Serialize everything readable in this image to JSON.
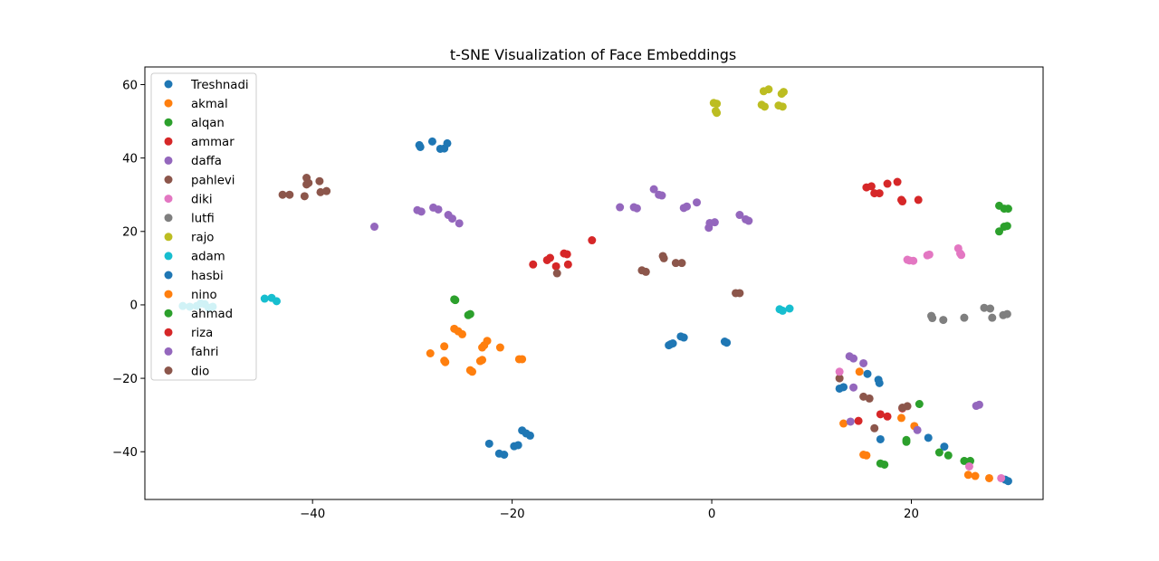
{
  "chart_data": {
    "type": "scatter",
    "title": "t-SNE Visualization of Face Embeddings",
    "xlabel": "",
    "ylabel": "",
    "xlim": [
      -56.8,
      33.2
    ],
    "ylim": [
      -53,
      64.8
    ],
    "xticks": [
      -40,
      -20,
      0,
      20
    ],
    "yticks": [
      -40,
      -20,
      0,
      20,
      40,
      60
    ],
    "grid": false,
    "legend_position": "upper-left",
    "series": [
      {
        "name": "Treshnadi",
        "color": "#1f77b4",
        "points": [
          [
            -29.3,
            43.5
          ],
          [
            -29.2,
            43
          ],
          [
            -28,
            44.5
          ],
          [
            -27.2,
            42.5
          ],
          [
            -26.8,
            42.6
          ],
          [
            -26.5,
            44
          ],
          [
            -22.3,
            -37.8
          ],
          [
            -21.3,
            -40.5
          ],
          [
            -20.8,
            -40.8
          ],
          [
            -19.8,
            -38.5
          ],
          [
            -19.4,
            -38.2
          ],
          [
            -19,
            -34.2
          ],
          [
            -18.6,
            -35
          ],
          [
            -18.2,
            -35.6
          ]
        ]
      },
      {
        "name": "akmal",
        "color": "#ff7f0e",
        "points": [
          [
            -28.2,
            -13.2
          ],
          [
            -26.8,
            -11.3
          ],
          [
            -26.8,
            -15.2
          ],
          [
            -26.7,
            -15.6
          ],
          [
            -25.8,
            -6.5
          ],
          [
            -25.4,
            -7.2
          ],
          [
            -25,
            -8
          ],
          [
            -24.2,
            -17.8
          ],
          [
            -24,
            -18.2
          ],
          [
            -23.2,
            -15.3
          ],
          [
            -23,
            -15
          ],
          [
            -23,
            -11.6
          ],
          [
            -22.8,
            -11
          ],
          [
            -22.5,
            -9.8
          ],
          [
            -21.2,
            -11.6
          ],
          [
            -19.3,
            -14.8
          ],
          [
            -19,
            -14.8
          ]
        ]
      },
      {
        "name": "alqan",
        "color": "#2ca02c",
        "points": [
          [
            -25.8,
            1.5
          ],
          [
            -25.7,
            1.3
          ],
          [
            -24.4,
            -2.8
          ],
          [
            -24.2,
            -2.5
          ],
          [
            28.8,
            27
          ],
          [
            29.3,
            26.2
          ],
          [
            29.7,
            26.2
          ],
          [
            28.8,
            20
          ],
          [
            29.3,
            21.3
          ],
          [
            29.6,
            21.5
          ]
        ]
      },
      {
        "name": "ammar",
        "color": "#d62728",
        "points": [
          [
            -17.9,
            11
          ],
          [
            -16.5,
            12.2
          ],
          [
            -16.2,
            12.8
          ],
          [
            -15.6,
            10.5
          ],
          [
            -14.8,
            14
          ],
          [
            -14.5,
            13.8
          ],
          [
            -14.4,
            11
          ],
          [
            -12,
            17.6
          ],
          [
            15.5,
            32
          ],
          [
            16,
            32.3
          ],
          [
            16.3,
            30.4
          ],
          [
            16.8,
            30.4
          ],
          [
            17.6,
            33
          ],
          [
            18.6,
            33.5
          ],
          [
            19,
            28.6
          ],
          [
            19.1,
            28.2
          ],
          [
            20.7,
            28.6
          ]
        ]
      },
      {
        "name": "daffa",
        "color": "#9467bd",
        "points": [
          [
            -33.8,
            21.3
          ],
          [
            -29.5,
            25.8
          ],
          [
            -29.1,
            25.4
          ],
          [
            -27.9,
            26.5
          ],
          [
            -27.4,
            26
          ],
          [
            -26.4,
            24.5
          ],
          [
            -26,
            23.5
          ],
          [
            -25.3,
            22.2
          ],
          [
            -9.2,
            26.6
          ],
          [
            -7.8,
            26.6
          ],
          [
            -7.5,
            26.3
          ],
          [
            -5.8,
            31.5
          ],
          [
            -5.3,
            30
          ],
          [
            -5,
            29.8
          ],
          [
            -2.8,
            26.4
          ],
          [
            -2.5,
            26.8
          ],
          [
            -1.5,
            27.9
          ],
          [
            -0.3,
            21
          ],
          [
            -0.2,
            22.3
          ],
          [
            0.3,
            22.5
          ],
          [
            2.8,
            24.5
          ],
          [
            3.4,
            23.3
          ],
          [
            3.7,
            22.9
          ]
        ]
      },
      {
        "name": "pahlevi",
        "color": "#8c564b",
        "points": [
          [
            -43,
            30
          ],
          [
            -42.3,
            30
          ],
          [
            -40.8,
            29.6
          ],
          [
            -40.6,
            32.8
          ],
          [
            -40.6,
            34.6
          ],
          [
            -40.4,
            33.2
          ],
          [
            -39.3,
            33.7
          ],
          [
            -39.2,
            30.7
          ],
          [
            -38.6,
            31
          ],
          [
            -15.5,
            8.6
          ],
          [
            -7,
            9.4
          ],
          [
            -6.6,
            9
          ],
          [
            -4.9,
            13.3
          ],
          [
            -4.8,
            12.7
          ],
          [
            -3.6,
            11.4
          ],
          [
            -3,
            11.4
          ],
          [
            2.4,
            3.2
          ],
          [
            2.8,
            3.2
          ]
        ]
      },
      {
        "name": "diki",
        "color": "#e377c2",
        "points": [
          [
            19.6,
            12.3
          ],
          [
            19.8,
            12.1
          ],
          [
            20.2,
            12
          ],
          [
            21.6,
            13.5
          ],
          [
            21.8,
            13.7
          ],
          [
            24.7,
            15.4
          ],
          [
            24.9,
            14
          ],
          [
            25,
            13.6
          ]
        ]
      },
      {
        "name": "lutfi",
        "color": "#7f7f7f",
        "points": [
          [
            22,
            -3
          ],
          [
            22.1,
            -3.6
          ],
          [
            23.2,
            -4.1
          ],
          [
            25.3,
            -3.5
          ],
          [
            27.3,
            -0.8
          ],
          [
            27.9,
            -1
          ],
          [
            28.1,
            -3.5
          ],
          [
            29.2,
            -2.8
          ],
          [
            29.6,
            -2.5
          ]
        ]
      },
      {
        "name": "rajo",
        "color": "#bcbd22",
        "points": [
          [
            0.2,
            55
          ],
          [
            0.5,
            54.8
          ],
          [
            0.4,
            52.8
          ],
          [
            0.5,
            52.3
          ],
          [
            5,
            54.5
          ],
          [
            5.3,
            54
          ],
          [
            5.2,
            58.2
          ],
          [
            5.7,
            58.7
          ],
          [
            6.7,
            54.3
          ],
          [
            7.1,
            54
          ],
          [
            7,
            57.5
          ],
          [
            7.2,
            58
          ]
        ]
      },
      {
        "name": "adam",
        "color": "#17becf",
        "points": [
          [
            -53,
            -0.3
          ],
          [
            -52.3,
            -0.5
          ],
          [
            -51.6,
            -0.3
          ],
          [
            -51.2,
            0.4
          ],
          [
            -50.8,
            0.2
          ],
          [
            -50.4,
            -0.8
          ],
          [
            -50,
            -0.5
          ],
          [
            -44.8,
            1.7
          ],
          [
            -44.1,
            1.9
          ],
          [
            -43.6,
            1
          ],
          [
            6.8,
            -1.2
          ],
          [
            7.1,
            -1.6
          ],
          [
            7.8,
            -1
          ]
        ]
      },
      {
        "name": "hasbi",
        "color": "#1f77b4",
        "points": [
          [
            -4.3,
            -11
          ],
          [
            -4.1,
            -10.7
          ],
          [
            -3.9,
            -10.5
          ],
          [
            -3.1,
            -8.6
          ],
          [
            -2.8,
            -8.9
          ],
          [
            1.3,
            -10
          ],
          [
            1.5,
            -10.3
          ],
          [
            12.8,
            -22.8
          ],
          [
            13.2,
            -22.4
          ],
          [
            15.6,
            -18.8
          ],
          [
            16.7,
            -20.4
          ],
          [
            16.8,
            -21.3
          ],
          [
            16.9,
            -36.6
          ],
          [
            21.7,
            -36.2
          ],
          [
            23.3,
            -38.6
          ],
          [
            29.4,
            -47.6
          ],
          [
            29.7,
            -48
          ]
        ]
      },
      {
        "name": "nino",
        "color": "#ff7f0e",
        "points": [
          [
            13.2,
            -32.3
          ],
          [
            14.8,
            -18.2
          ],
          [
            15.2,
            -40.8
          ],
          [
            15.5,
            -41
          ],
          [
            19,
            -30.8
          ],
          [
            20.3,
            -33
          ],
          [
            25.7,
            -46.3
          ],
          [
            26.4,
            -46.6
          ],
          [
            27.8,
            -47.2
          ]
        ]
      },
      {
        "name": "ahmad",
        "color": "#2ca02c",
        "points": [
          [
            16.9,
            -43.2
          ],
          [
            17.3,
            -43.5
          ],
          [
            19.5,
            -36.8
          ],
          [
            19.5,
            -37.3
          ],
          [
            20.8,
            -27
          ],
          [
            22.8,
            -40.2
          ],
          [
            23.7,
            -41
          ],
          [
            25.3,
            -42.5
          ],
          [
            25.9,
            -42.5
          ]
        ]
      },
      {
        "name": "riza",
        "color": "#d62728",
        "points": [
          [
            14.7,
            -31.6
          ],
          [
            16.9,
            -29.8
          ],
          [
            17.6,
            -30.4
          ],
          [
            19.1,
            -28.2
          ]
        ]
      },
      {
        "name": "fahri",
        "color": "#9467bd",
        "points": [
          [
            13.8,
            -14
          ],
          [
            14.2,
            -14.6
          ],
          [
            15.2,
            -15.9
          ],
          [
            14.2,
            -22.5
          ],
          [
            13.9,
            -31.8
          ],
          [
            20.6,
            -34.1
          ],
          [
            26.5,
            -27.5
          ],
          [
            26.8,
            -27.2
          ]
        ]
      },
      {
        "name": "dio",
        "color": "#8c564b",
        "points": [
          [
            12.8,
            -20
          ],
          [
            15.2,
            -25
          ],
          [
            15.8,
            -25.5
          ],
          [
            16.3,
            -33.6
          ],
          [
            19.1,
            -28
          ],
          [
            19.6,
            -27.6
          ]
        ]
      },
      {
        "name": "",
        "color": "#e377c2",
        "points": [
          [
            12.8,
            -18.2
          ],
          [
            25.8,
            -44
          ],
          [
            29,
            -47.2
          ]
        ]
      }
    ]
  }
}
